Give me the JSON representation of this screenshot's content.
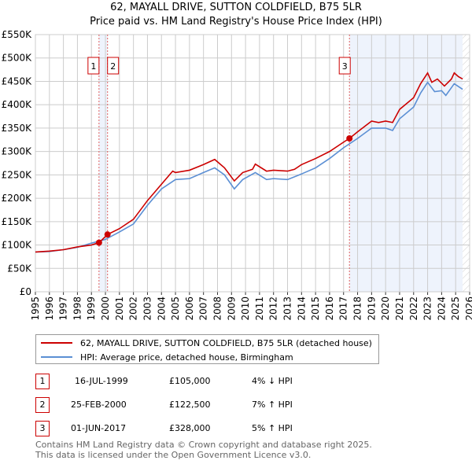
{
  "title": "62, MAYALL DRIVE, SUTTON COLDFIELD, B75 5LR",
  "subtitle": "Price paid vs. HM Land Registry's House Price Index (HPI)",
  "chart_data": {
    "type": "line",
    "xlim": [
      1995,
      2026
    ],
    "ylim": [
      0,
      550000
    ],
    "y_ticks": [
      0,
      50000,
      100000,
      150000,
      200000,
      250000,
      300000,
      350000,
      400000,
      450000,
      500000,
      550000
    ],
    "y_tick_labels": [
      "£0",
      "£50K",
      "£100K",
      "£150K",
      "£200K",
      "£250K",
      "£300K",
      "£350K",
      "£400K",
      "£450K",
      "£500K",
      "£550K"
    ],
    "x_ticks": [
      "1995",
      "1996",
      "1997",
      "1998",
      "1999",
      "2000",
      "2001",
      "2002",
      "2003",
      "2004",
      "2005",
      "2006",
      "2007",
      "2008",
      "2009",
      "2010",
      "2011",
      "2012",
      "2013",
      "2014",
      "2015",
      "2016",
      "2017",
      "2018",
      "2019",
      "2020",
      "2021",
      "2022",
      "2023",
      "2024",
      "2025",
      "2026"
    ],
    "grid": true,
    "series": [
      {
        "name": "62, MAYALL DRIVE, SUTTON COLDFIELD, B75 5LR (detached house)",
        "color": "#cc0000",
        "x": [
          1995,
          1996,
          1997,
          1998,
          1999,
          1999.54,
          2000.15,
          2001,
          2002,
          2003,
          2004,
          2004.8,
          2005,
          2006,
          2007,
          2007.8,
          2008.5,
          2009.2,
          2009.8,
          2010.5,
          2010.7,
          2011.5,
          2012,
          2013,
          2013.5,
          2014,
          2015,
          2016,
          2017,
          2017.42,
          2018,
          2019,
          2019.5,
          2020,
          2020.5,
          2021,
          2022,
          2022.5,
          2023,
          2023.3,
          2023.7,
          2024.2,
          2024.7,
          2024.9,
          2025.2,
          2025.5
        ],
        "y": [
          85000,
          87000,
          90000,
          96000,
          100000,
          105000,
          122500,
          135000,
          155000,
          195000,
          230000,
          258000,
          255000,
          260000,
          272000,
          283000,
          265000,
          237000,
          255000,
          262000,
          273000,
          258000,
          260000,
          258000,
          262000,
          272000,
          285000,
          300000,
          320000,
          328000,
          342000,
          365000,
          362000,
          365000,
          362000,
          390000,
          415000,
          445000,
          468000,
          448000,
          455000,
          440000,
          455000,
          468000,
          460000,
          455000
        ]
      },
      {
        "name": "HPI: Average price, detached house, Birmingham",
        "color": "#5b8fd4",
        "x": [
          1995,
          1996,
          1997,
          1998,
          1999,
          2000,
          2001,
          2002,
          2003,
          2004,
          2005,
          2006,
          2007,
          2007.8,
          2008.5,
          2009.2,
          2009.8,
          2010.7,
          2011.5,
          2012,
          2013,
          2014,
          2015,
          2016,
          2017,
          2018,
          2019,
          2020,
          2020.5,
          2021,
          2022,
          2022.5,
          2023,
          2023.5,
          2024,
          2024.3,
          2024.9,
          2025.5
        ],
        "y": [
          85000,
          86000,
          90000,
          95000,
          104000,
          112000,
          128000,
          145000,
          185000,
          220000,
          240000,
          242000,
          255000,
          265000,
          250000,
          220000,
          240000,
          255000,
          240000,
          242000,
          240000,
          252000,
          265000,
          285000,
          308000,
          328000,
          350000,
          350000,
          345000,
          370000,
          395000,
          425000,
          448000,
          428000,
          430000,
          420000,
          445000,
          433000
        ]
      }
    ],
    "sales": [
      {
        "label": "1",
        "x": 1999.54,
        "y": 105000
      },
      {
        "label": "2",
        "x": 2000.15,
        "y": 122500
      },
      {
        "label": "3",
        "x": 2017.42,
        "y": 328000
      }
    ],
    "hatched_from": 2025.5
  },
  "legend": {
    "red": "62, MAYALL DRIVE, SUTTON COLDFIELD, B75 5LR (detached house)",
    "blue": "HPI: Average price, detached house, Birmingham"
  },
  "table": [
    {
      "num": "1",
      "date": "16-JUL-1999",
      "price": "£105,000",
      "hpi": "4% ↓ HPI"
    },
    {
      "num": "2",
      "date": "25-FEB-2000",
      "price": "£122,500",
      "hpi": "7% ↑ HPI"
    },
    {
      "num": "3",
      "date": "01-JUN-2017",
      "price": "£328,000",
      "hpi": "5% ↑ HPI"
    }
  ],
  "footer": [
    "Contains HM Land Registry data © Crown copyright and database right 2025.",
    "This data is licensed under the Open Government Licence v3.0."
  ]
}
